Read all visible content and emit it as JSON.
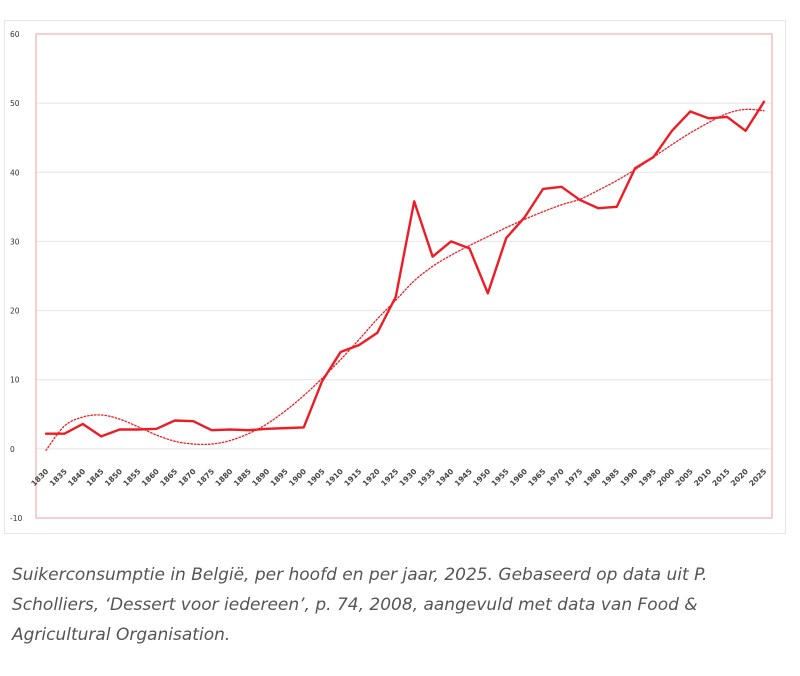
{
  "chart_data": {
    "type": "line",
    "title": "",
    "xlabel": "",
    "ylabel": "",
    "ylim": [
      -10,
      60
    ],
    "yticks": [
      -10,
      0,
      10,
      20,
      30,
      40,
      50,
      60
    ],
    "grid": true,
    "x": [
      "1830",
      "1835",
      "1840",
      "1845",
      "1850",
      "1855",
      "1860",
      "1865",
      "1870",
      "1875",
      "1880",
      "1885",
      "1890",
      "1895",
      "1900",
      "1905",
      "1910",
      "1915",
      "1920",
      "1925",
      "1930",
      "1935",
      "1940",
      "1945",
      "1950",
      "1955",
      "1960",
      "1965",
      "1970",
      "1975",
      "1980",
      "1985",
      "1990",
      "1995",
      "2000",
      "2005",
      "2010",
      "2015",
      "2020",
      "2025"
    ],
    "series": [
      {
        "values": [
          2.2,
          2.2,
          3.6,
          1.8,
          2.8,
          2.8,
          2.9,
          4.1,
          4.0,
          2.7,
          2.8,
          2.7,
          2.9,
          3.0,
          3.1,
          9.8,
          14.0,
          15.0,
          16.8,
          22.0,
          35.8,
          27.8,
          30.0,
          29.0,
          22.5,
          30.5,
          33.5,
          37.6,
          37.9,
          36.0,
          34.8,
          35.0,
          40.6,
          42.2,
          46.0,
          48.8,
          47.8,
          48.0,
          46.0,
          50.2
        ],
        "color": "#ee1c25",
        "style": "solid"
      },
      {
        "values": [
          -0.2,
          3.3,
          4.6,
          4.9,
          4.3,
          3.2,
          2.0,
          1.1,
          0.7,
          0.7,
          1.2,
          2.2,
          3.6,
          5.5,
          7.7,
          10.2,
          12.9,
          15.8,
          18.8,
          21.5,
          24.3,
          26.4,
          28.0,
          29.4,
          30.7,
          32.0,
          33.2,
          34.3,
          35.3,
          36.1,
          37.4,
          38.8,
          40.4,
          42.2,
          44.0,
          45.7,
          47.2,
          48.5,
          49.1,
          48.9
        ],
        "color": "#ee1c25",
        "style": "dotted",
        "type": "trendline"
      }
    ]
  },
  "caption": "Suikerconsumptie in België, per hoofd en per jaar, 2025. Gebaseerd op data uit P. Scholliers, ‘Dessert voor iedereen’, p. 74, 2008, aangevuld met data van Food & Agricultural Organisation."
}
